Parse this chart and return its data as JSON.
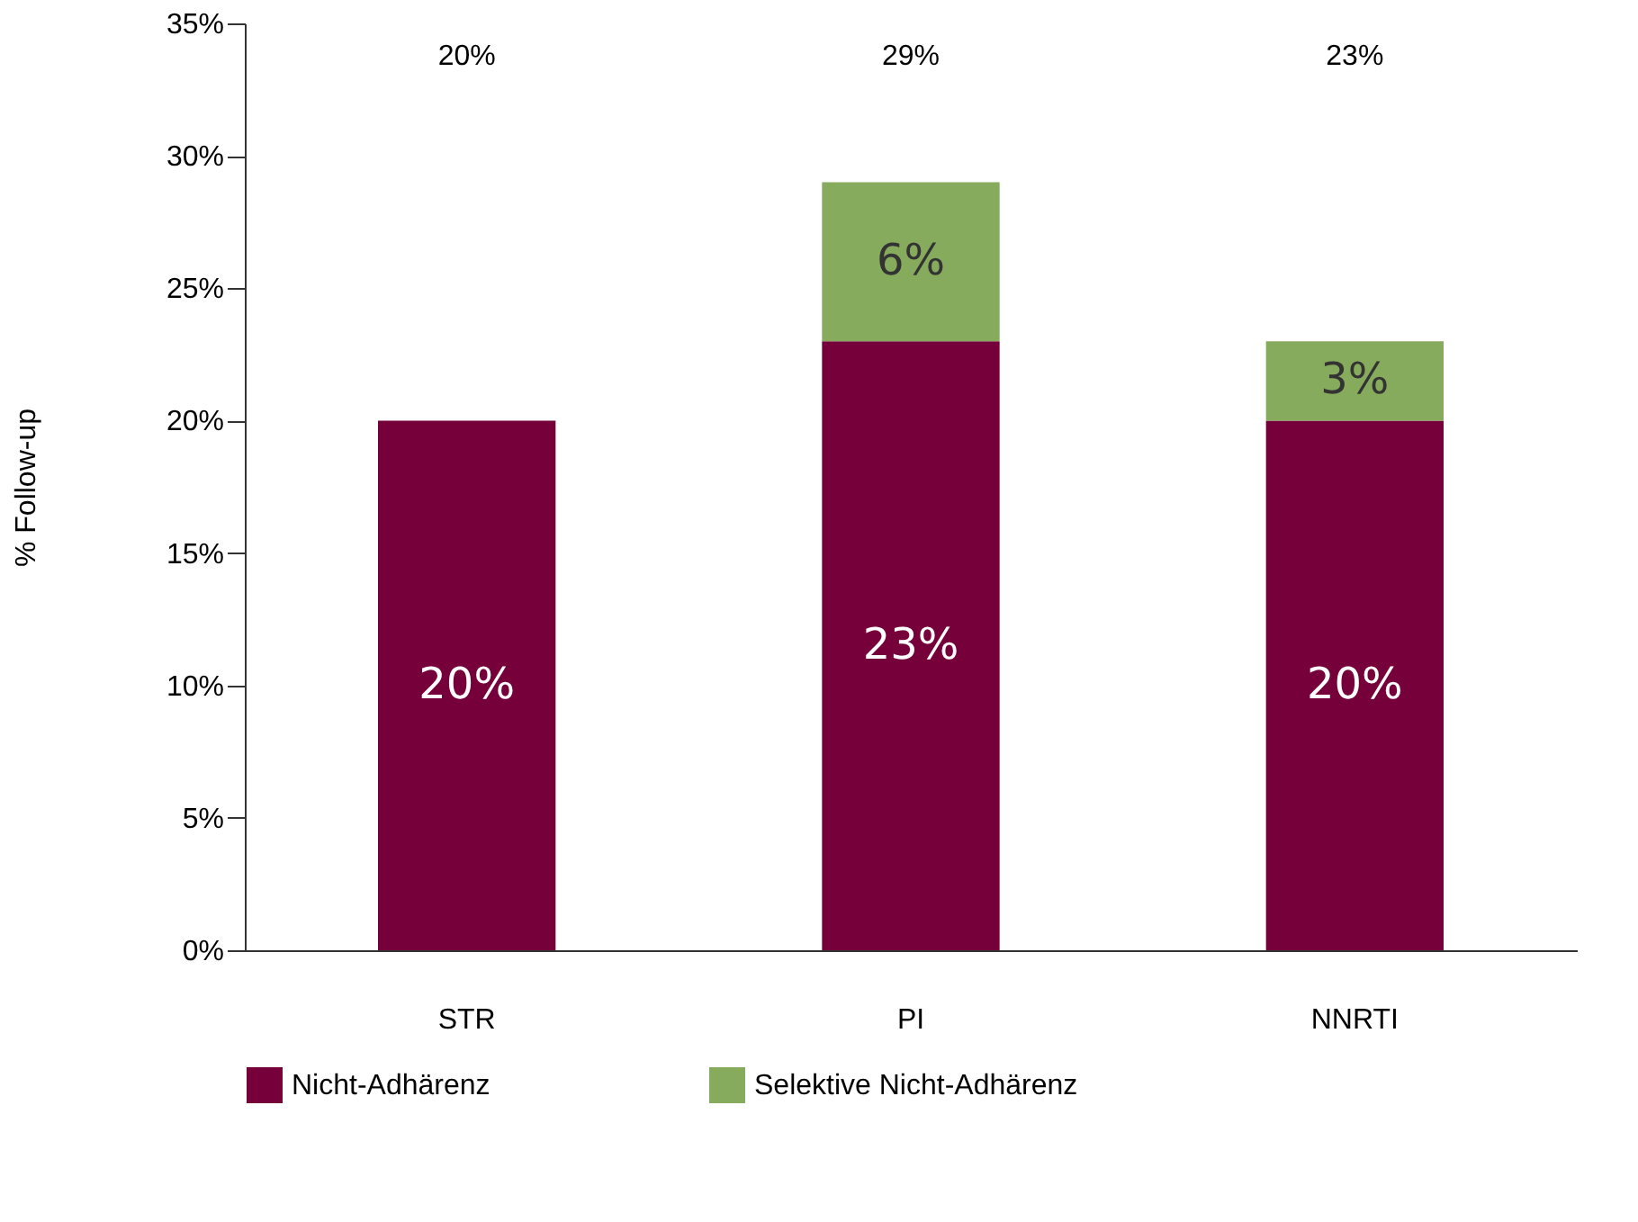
{
  "chart_data": {
    "type": "bar",
    "stacked": true,
    "ylabel": "% Follow-up",
    "categories": [
      "STR",
      "PI",
      "NNRTI"
    ],
    "series": [
      {
        "name": "Nicht-Adhärenz",
        "color": "#75003a",
        "values": [
          20,
          23,
          20
        ],
        "value_labels": [
          "20%",
          "23%",
          "20%"
        ]
      },
      {
        "name": "Selektive Nicht-Adhärenz",
        "color": "#87ab5c",
        "values": [
          null,
          6,
          3
        ],
        "value_labels": [
          null,
          "6%",
          "3%"
        ]
      }
    ],
    "annotations": [
      "20%",
      "29%",
      "23%"
    ],
    "ylim": [
      0,
      35
    ],
    "yticks": [
      {
        "value": 0,
        "label": "0%"
      },
      {
        "value": 5,
        "label": "5%"
      },
      {
        "value": 10,
        "label": "10%"
      },
      {
        "value": 15,
        "label": "15%"
      },
      {
        "value": 20,
        "label": "20%"
      },
      {
        "value": 25,
        "label": "25%"
      },
      {
        "value": 30,
        "label": "30%"
      },
      {
        "value": 35,
        "label": "35%"
      }
    ],
    "grid": false,
    "legend": "bottom"
  }
}
